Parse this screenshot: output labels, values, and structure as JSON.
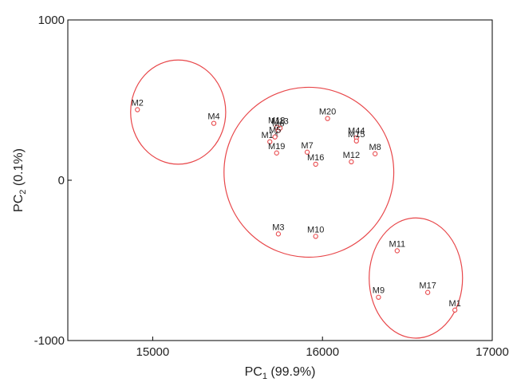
{
  "chart_data": {
    "type": "scatter",
    "title": "",
    "xlabel": {
      "main": "PC",
      "sub": "1",
      "rest": " (99.9%)"
    },
    "ylabel": {
      "main": "PC",
      "sub": "2",
      "rest": " (0.1%)"
    },
    "xlim": [
      14500,
      17000
    ],
    "ylim": [
      -1000,
      1000
    ],
    "xticks": [
      15000,
      16000,
      17000
    ],
    "yticks": [
      -1000,
      0,
      1000
    ],
    "xtick_labels": [
      "15000",
      "16000",
      "17000"
    ],
    "ytick_labels": [
      "-1000",
      "0",
      "1000"
    ],
    "grid": false,
    "legend": "none",
    "marker_color": "#e8474a",
    "ellipse_color": "#e8474a",
    "points": [
      {
        "label": "M2",
        "x": 14910,
        "y": 440
      },
      {
        "label": "M4",
        "x": 15360,
        "y": 355
      },
      {
        "label": "M18",
        "x": 15730,
        "y": 330
      },
      {
        "label": "M6",
        "x": 15740,
        "y": 310
      },
      {
        "label": "M13",
        "x": 15750,
        "y": 325
      },
      {
        "label": "M14",
        "x": 15690,
        "y": 240
      },
      {
        "label": "M5",
        "x": 15720,
        "y": 270
      },
      {
        "label": "M19",
        "x": 15730,
        "y": 170
      },
      {
        "label": "M20",
        "x": 16030,
        "y": 385
      },
      {
        "label": "M7",
        "x": 15910,
        "y": 175
      },
      {
        "label": "M16",
        "x": 15960,
        "y": 100
      },
      {
        "label": "M44",
        "x": 16200,
        "y": 265
      },
      {
        "label": "M15",
        "x": 16200,
        "y": 245
      },
      {
        "label": "M12",
        "x": 16170,
        "y": 115
      },
      {
        "label": "M8",
        "x": 16310,
        "y": 165
      },
      {
        "label": "M3",
        "x": 15740,
        "y": -335
      },
      {
        "label": "M10",
        "x": 15960,
        "y": -350
      },
      {
        "label": "M11",
        "x": 16440,
        "y": -440
      },
      {
        "label": "M9",
        "x": 16330,
        "y": -730
      },
      {
        "label": "M17",
        "x": 16620,
        "y": -700
      },
      {
        "label": "M1",
        "x": 16780,
        "y": -810
      }
    ],
    "clusters": [
      {
        "cx": 15150,
        "cy": 425,
        "rx": 280,
        "ry": 325
      },
      {
        "cx": 15920,
        "cy": 50,
        "rx": 500,
        "ry": 530
      },
      {
        "cx": 16550,
        "cy": -610,
        "rx": 275,
        "ry": 375
      }
    ]
  }
}
